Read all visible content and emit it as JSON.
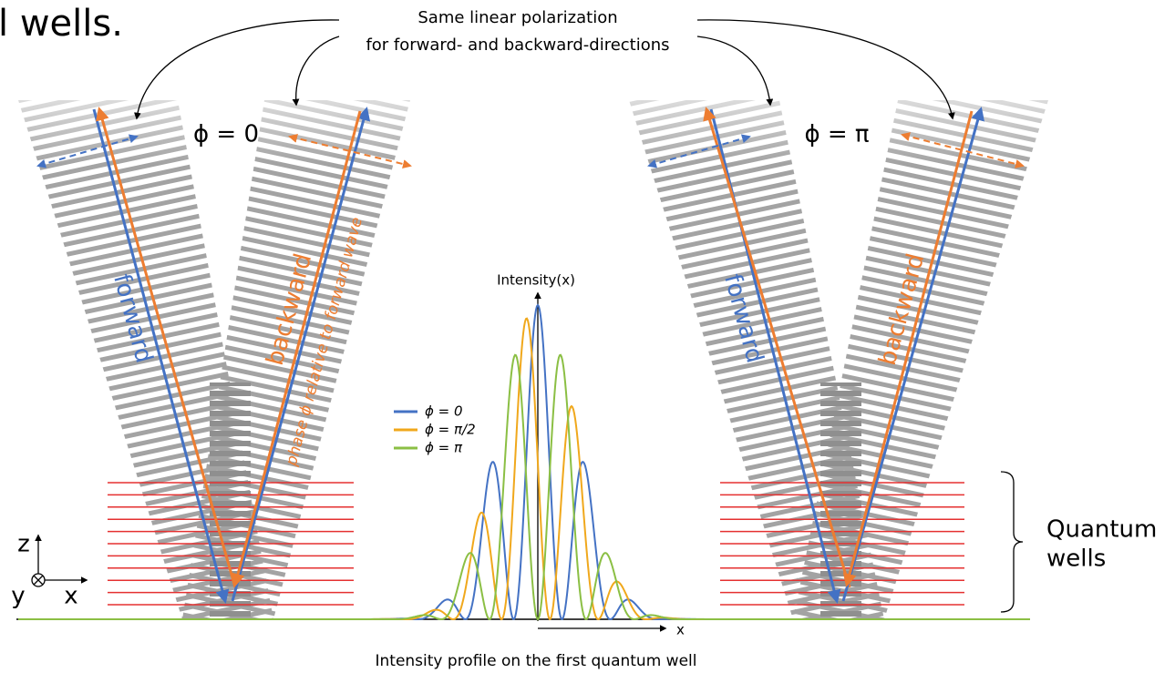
{
  "header": {
    "title": "l wells."
  },
  "annotation": {
    "lines": [
      "Same linear polarization",
      "for forward- and backward-directions"
    ]
  },
  "left_panel": {
    "phase": "ϕ = 0",
    "forward": "forward",
    "backward": "backward",
    "phase_note": "phase ϕ relative to forward wave"
  },
  "right_panel": {
    "phase": "ϕ = π",
    "forward": "forward",
    "backward": "backward"
  },
  "profile": {
    "y_label": "Intensity(x)",
    "x_label": "x",
    "caption": "Intensity profile on the first quantum well",
    "legend": [
      "ϕ = 0",
      "ϕ = π/2",
      "ϕ = π"
    ]
  },
  "quantum_wells": {
    "label": [
      "Quantum",
      "wells"
    ]
  },
  "axes": {
    "z": "z",
    "y": "y",
    "x": "x"
  }
}
